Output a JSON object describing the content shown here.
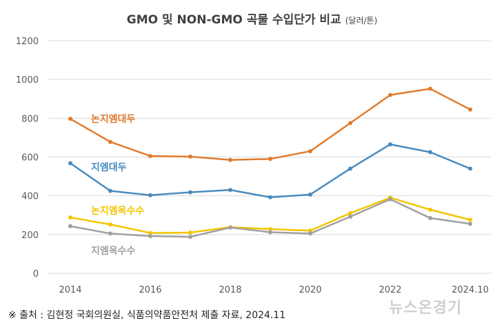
{
  "chart_data": {
    "type": "line",
    "title": "GMO 및 NON-GMO 곡물 수입단가 비교",
    "unit": "(달러/톤)",
    "x": [
      "2014",
      "2015",
      "2016",
      "2017",
      "2018",
      "2019",
      "2020",
      "2021",
      "2022",
      "2023",
      "2024.10"
    ],
    "x_tick_labels": [
      "2014",
      "2016",
      "2018",
      "2020",
      "2022",
      "2024.10"
    ],
    "ylim": [
      0,
      1200
    ],
    "y_ticks": [
      0,
      200,
      400,
      600,
      800,
      1000,
      1200
    ],
    "grid": true,
    "series": [
      {
        "name": "논지엠대두",
        "color": "#E07B2E",
        "values": [
          797,
          678,
          605,
          602,
          585,
          590,
          630,
          775,
          920,
          952,
          845
        ]
      },
      {
        "name": "지엠대두",
        "color": "#4A8BBE",
        "values": [
          568,
          425,
          403,
          418,
          430,
          392,
          406,
          540,
          665,
          625,
          540
        ]
      },
      {
        "name": "논지엠옥수수",
        "color": "#F2C500",
        "values": [
          288,
          252,
          208,
          210,
          238,
          228,
          220,
          310,
          390,
          328,
          276
        ]
      },
      {
        "name": "지엠옥수수",
        "color": "#A0A0A0",
        "values": [
          243,
          205,
          192,
          188,
          236,
          212,
          205,
          292,
          382,
          285,
          255
        ]
      }
    ]
  },
  "footer": {
    "source": "※ 출처 : 김현정 국회의원실, 식품의약품안전처 제출 자료, 2024.11",
    "watermark": "뉴스온경기"
  },
  "colors": {
    "axis_text": "#595959",
    "grid": "#D9D9D9"
  }
}
